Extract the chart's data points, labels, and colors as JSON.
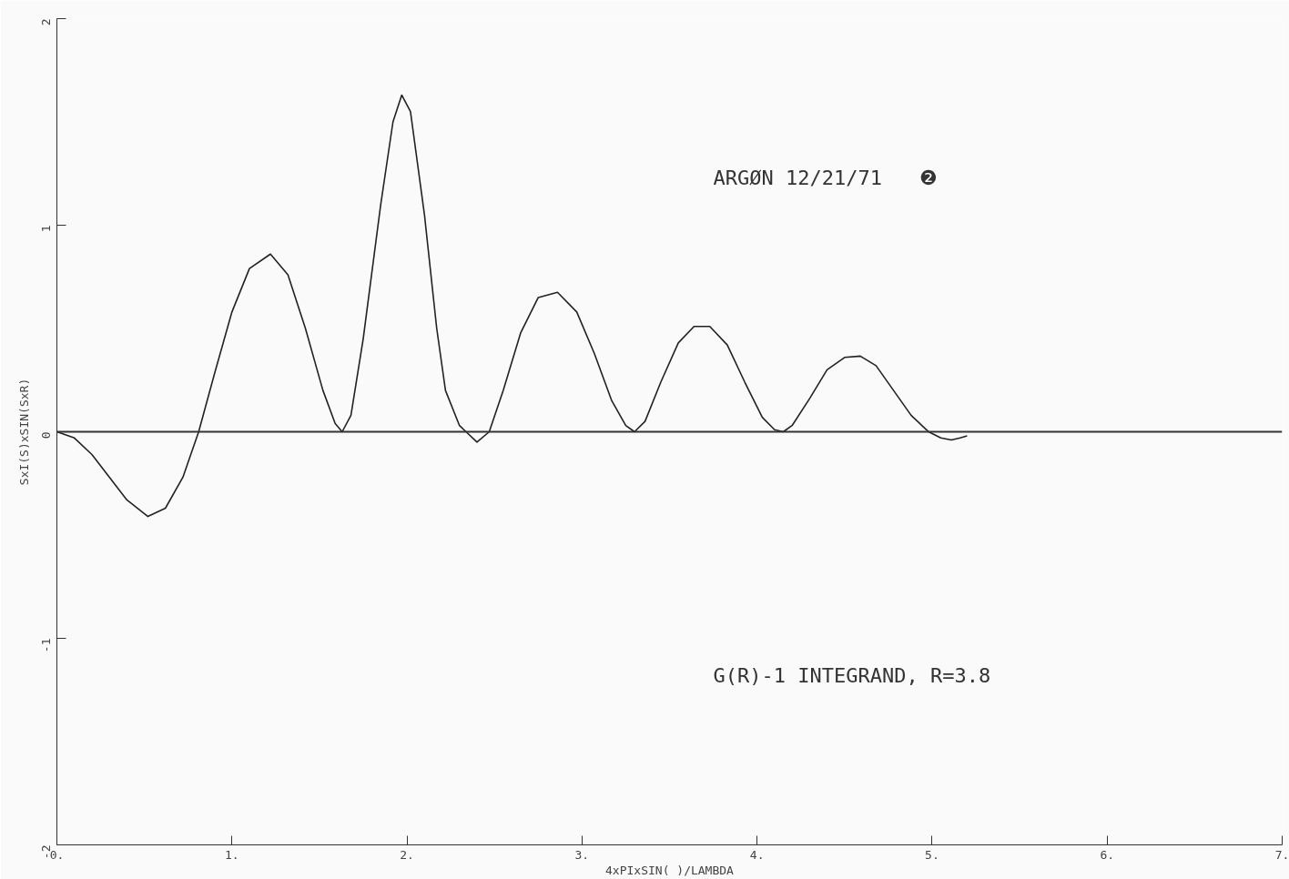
{
  "chart_data": {
    "type": "line",
    "xlabel": "4xPIxSIN( )/LAMBDA",
    "ylabel": "SxI(S)xSIN(SxR)",
    "annotations": [
      "ARGØN 12/21/71",
      "❷",
      "G(R)-1 INTEGRAND, R=3.8"
    ],
    "xlim": [
      0,
      7
    ],
    "ylim": [
      -2,
      2
    ],
    "xticks": [
      {
        "value": 0,
        "label": "0."
      },
      {
        "value": 1,
        "label": "1."
      },
      {
        "value": 2,
        "label": "2."
      },
      {
        "value": 3,
        "label": "3."
      },
      {
        "value": 4,
        "label": "4."
      },
      {
        "value": 5,
        "label": "5."
      },
      {
        "value": 6,
        "label": "6."
      },
      {
        "value": 7,
        "label": "7."
      }
    ],
    "yticks": [
      -2,
      -1,
      0,
      1,
      2
    ],
    "ref_lines": [
      {
        "axis": "y",
        "value": 0,
        "label": null,
        "color": "#333333"
      }
    ],
    "marker": "none",
    "line_style": "solid",
    "series": [
      {
        "color": "#222222",
        "x": [
          0,
          0.1,
          0.2,
          0.3,
          0.4,
          0.52,
          0.62,
          0.72,
          0.81,
          0.9,
          1.0,
          1.1,
          1.22,
          1.32,
          1.42,
          1.52,
          1.59,
          1.63,
          1.68,
          1.75,
          1.85,
          1.92,
          1.97,
          2.02,
          2.1,
          2.17,
          2.22,
          2.3,
          2.4,
          2.47,
          2.55,
          2.65,
          2.75,
          2.86,
          2.97,
          3.07,
          3.17,
          3.25,
          3.3,
          3.36,
          3.45,
          3.55,
          3.64,
          3.73,
          3.83,
          3.93,
          4.03,
          4.1,
          4.15,
          4.2,
          4.3,
          4.4,
          4.5,
          4.59,
          4.68,
          4.78,
          4.88,
          4.98,
          5.05,
          5.11,
          5.16,
          5.2
        ],
        "values": [
          0,
          -0.03,
          -0.11,
          -0.22,
          -0.33,
          -0.41,
          -0.37,
          -0.22,
          0,
          0.28,
          0.58,
          0.79,
          0.86,
          0.76,
          0.5,
          0.2,
          0.04,
          0,
          0.08,
          0.45,
          1.1,
          1.5,
          1.63,
          1.55,
          1.05,
          0.5,
          0.2,
          0.03,
          -0.05,
          0,
          0.2,
          0.48,
          0.65,
          0.675,
          0.58,
          0.38,
          0.15,
          0.03,
          0,
          0.05,
          0.24,
          0.43,
          0.51,
          0.51,
          0.42,
          0.24,
          0.07,
          0.01,
          0,
          0.03,
          0.16,
          0.3,
          0.36,
          0.366,
          0.32,
          0.2,
          0.08,
          0,
          -0.03,
          -0.04,
          -0.03,
          -0.02
        ]
      }
    ]
  }
}
